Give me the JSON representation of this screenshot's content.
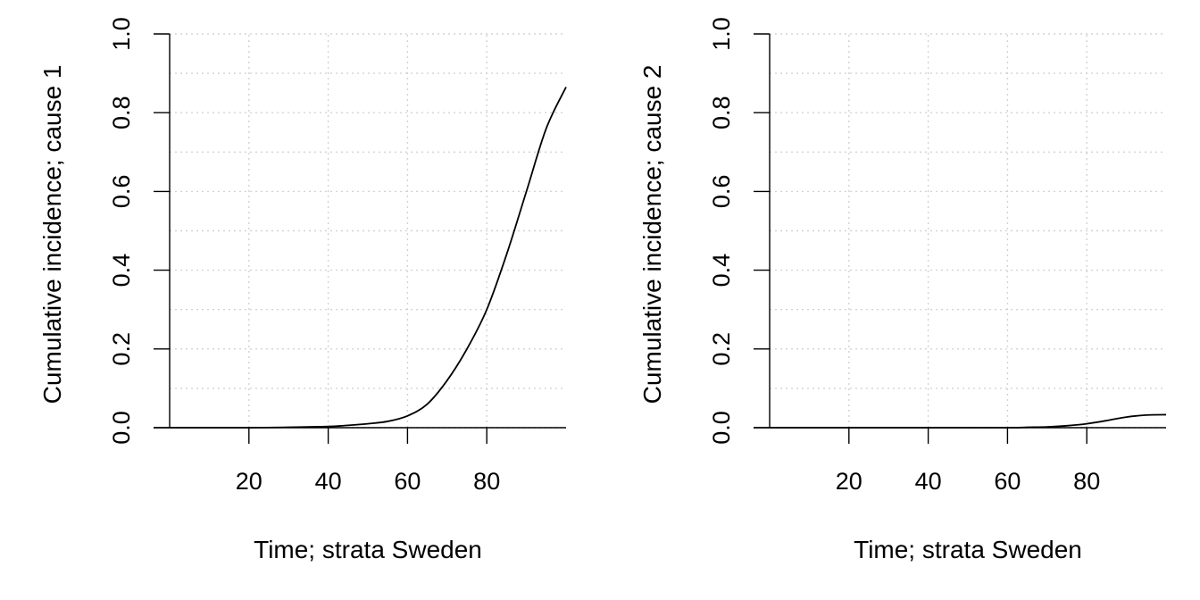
{
  "chart_data": [
    {
      "type": "line",
      "xlabel": "Time; strata Sweden",
      "ylabel": "Cumulative incidence; cause 1",
      "xlim": [
        0,
        100
      ],
      "ylim": [
        0,
        1
      ],
      "xticks": [
        20,
        40,
        60,
        80
      ],
      "yticks": [
        0.0,
        0.2,
        0.4,
        0.6,
        0.8,
        1.0
      ],
      "xtick_labels": [
        "20",
        "40",
        "60",
        "80"
      ],
      "ytick_labels": [
        "0.0",
        "0.2",
        "0.4",
        "0.6",
        "0.8",
        "1.0"
      ],
      "grid": true,
      "series": [
        {
          "x": [
            0,
            20,
            30,
            40,
            45,
            50,
            55,
            60,
            65,
            70,
            75,
            80,
            85,
            90,
            95,
            100
          ],
          "y": [
            0,
            0,
            0.001,
            0.003,
            0.006,
            0.01,
            0.016,
            0.03,
            0.06,
            0.12,
            0.2,
            0.3,
            0.44,
            0.6,
            0.76,
            0.865
          ]
        }
      ]
    },
    {
      "type": "line",
      "xlabel": "Time; strata Sweden",
      "ylabel": "Cumulative incidence; cause 2",
      "xlim": [
        0,
        100
      ],
      "ylim": [
        0,
        1
      ],
      "xticks": [
        20,
        40,
        60,
        80
      ],
      "yticks": [
        0.0,
        0.2,
        0.4,
        0.6,
        0.8,
        1.0
      ],
      "xtick_labels": [
        "20",
        "40",
        "60",
        "80"
      ],
      "ytick_labels": [
        "0.0",
        "0.2",
        "0.4",
        "0.6",
        "0.8",
        "1.0"
      ],
      "grid": true,
      "series": [
        {
          "x": [
            0,
            40,
            60,
            65,
            70,
            75,
            80,
            85,
            90,
            95,
            100
          ],
          "y": [
            0,
            0,
            0,
            0.001,
            0.002,
            0.005,
            0.01,
            0.018,
            0.027,
            0.032,
            0.033
          ]
        }
      ]
    }
  ]
}
